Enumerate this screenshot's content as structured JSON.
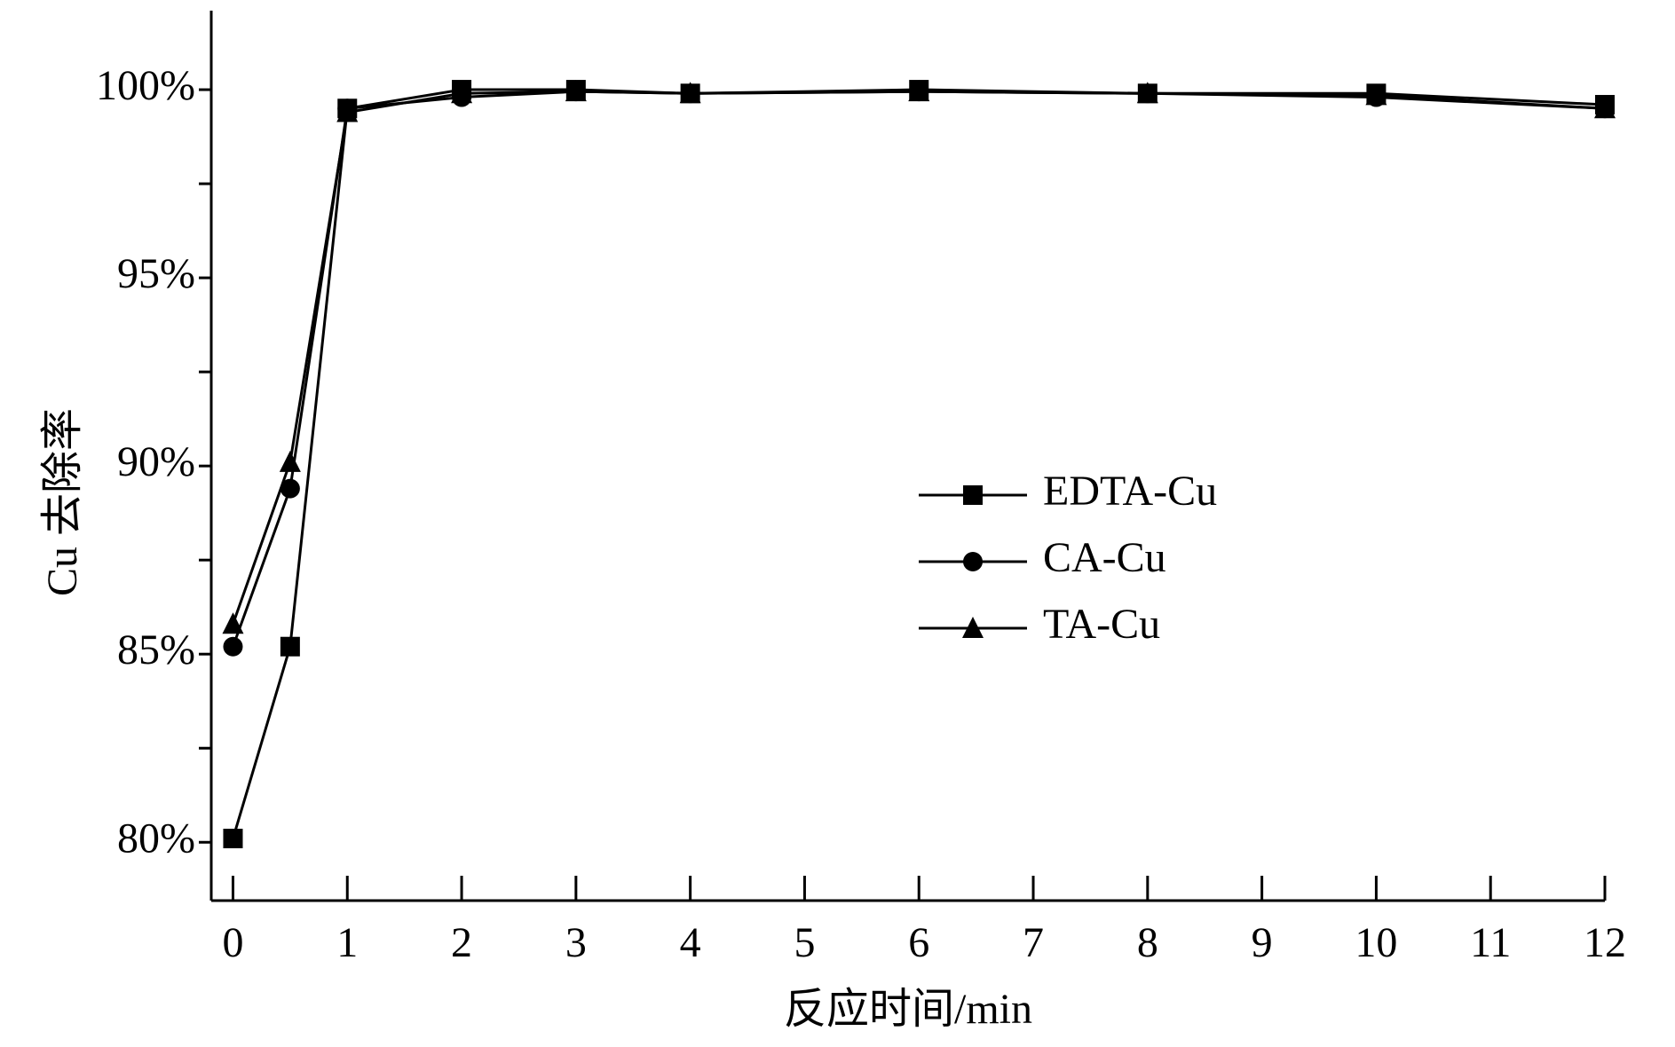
{
  "chart_data": {
    "type": "line",
    "x_label": "反应时间/min",
    "y_label": "Cu 去除率",
    "xlim": [
      -0.19,
      12
    ],
    "ylim": [
      78.45,
      102.1
    ],
    "xticks": [
      0,
      1,
      2,
      3,
      4,
      5,
      6,
      7,
      8,
      9,
      10,
      11,
      12
    ],
    "yticks": [
      {
        "value": 80,
        "label": "80%"
      },
      {
        "value": 85,
        "label": "85%"
      },
      {
        "value": 90,
        "label": "90%"
      },
      {
        "value": 95,
        "label": "95%"
      },
      {
        "value": 100,
        "label": "100%"
      }
    ],
    "yminorticks": [
      82.5,
      87.5,
      92.5,
      97.5
    ],
    "legend": "center-right",
    "grid": false,
    "x": [
      0,
      0.5,
      1,
      2,
      3,
      4,
      6,
      8,
      10,
      12
    ],
    "series": [
      {
        "name": "EDTA-Cu",
        "color": "#000000",
        "marker": "square",
        "values": [
          80.1,
          85.2,
          99.5,
          100,
          100,
          99.9,
          100,
          99.9,
          99.9,
          99.6
        ]
      },
      {
        "name": "CA-Cu",
        "color": "#000000",
        "marker": "circle",
        "values": [
          85.2,
          89.4,
          99.5,
          99.8,
          99.95,
          99.9,
          99.95,
          99.9,
          99.8,
          99.5
        ]
      },
      {
        "name": "TA-Cu",
        "color": "#000000",
        "marker": "triangle",
        "values": [
          85.8,
          90.1,
          99.4,
          99.9,
          99.95,
          99.9,
          99.95,
          99.9,
          99.85,
          99.5
        ]
      }
    ]
  }
}
